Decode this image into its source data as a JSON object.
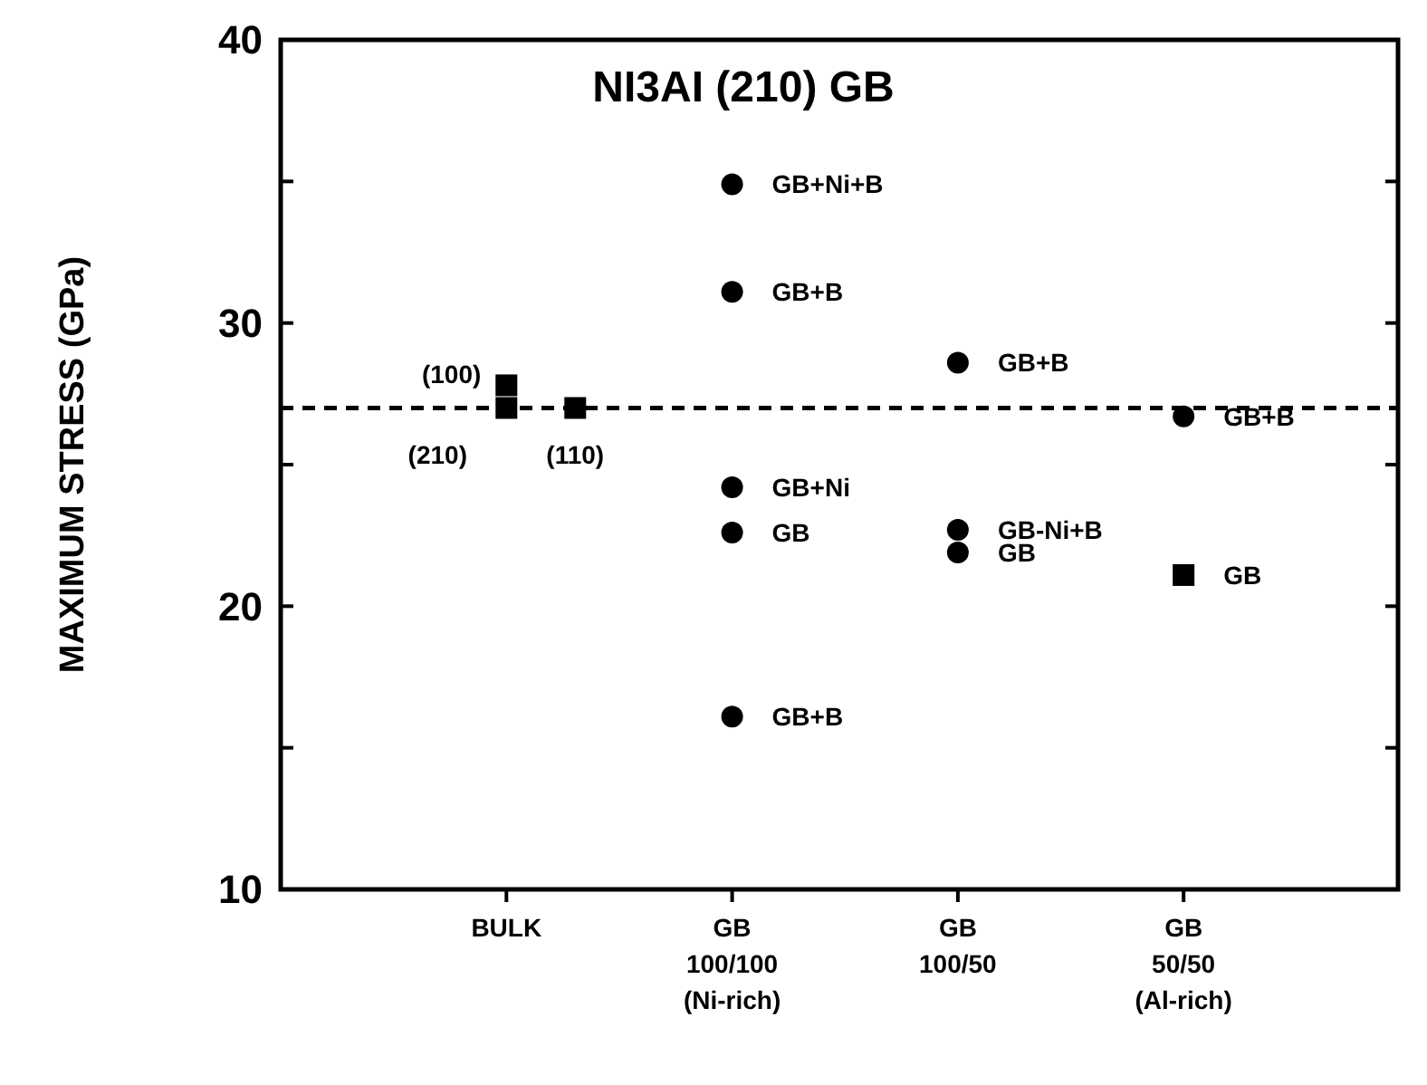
{
  "chart_data": {
    "type": "scatter",
    "title": "NI3AI (210) GB",
    "ylabel": "MAXIMUM STRESS (GPa)",
    "categories": [
      "BULK",
      "GB\n100/100\n(Ni-rich)",
      "GB\n100/50",
      "GB\n50/50\n(Al-rich)"
    ],
    "ylim": [
      10,
      40
    ],
    "yticks": [
      10,
      {
        "value": 15,
        "label": null
      },
      20,
      {
        "value": 25,
        "label": null
      },
      30,
      {
        "value": 35,
        "label": null
      },
      40
    ],
    "series": [
      {
        "color": "#000000",
        "marker": "square",
        "x": [
          "BULK",
          "BULK",
          "BULK",
          "GB\n50/50\n(Al-rich)"
        ],
        "values": [
          27.8,
          27.0,
          27.0,
          21.1
        ]
      },
      {
        "color": "#000000",
        "marker": "circle",
        "x": [
          "GB\n100/100\n(Ni-rich)",
          "GB\n100/100\n(Ni-rich)",
          "GB\n100/100\n(Ni-rich)",
          "GB\n100/100\n(Ni-rich)",
          "GB\n100/100\n(Ni-rich)",
          "GB\n100/50",
          "GB\n100/50",
          "GB\n100/50",
          "GB\n50/50\n(Al-rich)"
        ],
        "values": [
          34.9,
          31.1,
          24.2,
          22.6,
          16.1,
          28.6,
          22.7,
          21.9,
          26.7
        ]
      }
    ],
    "ref_lines": [
      {
        "axis": "y",
        "value": 27,
        "line_style": "dashed",
        "color": "#000000"
      }
    ],
    "annotations": [
      {
        "text": "(100)",
        "x": "BULK",
        "y": 27.8
      },
      {
        "text": "(210)",
        "x": "BULK",
        "y": 27.0
      },
      {
        "text": "(110)",
        "x": "BULK",
        "y": 27.0
      },
      {
        "text": "GB+Ni+B",
        "x": "GB\n100/100\n(Ni-rich)",
        "y": 34.9
      },
      {
        "text": "GB+B",
        "x": "GB\n100/100\n(Ni-rich)",
        "y": 31.1
      },
      {
        "text": "GB+Ni",
        "x": "GB\n100/100\n(Ni-rich)",
        "y": 24.2
      },
      {
        "text": "GB",
        "x": "GB\n100/100\n(Ni-rich)",
        "y": 22.6
      },
      {
        "text": "GB+B",
        "x": "GB\n100/100\n(Ni-rich)",
        "y": 16.1
      },
      {
        "text": "GB+B",
        "x": "GB\n100/50",
        "y": 28.6
      },
      {
        "text": "GB-Ni+B",
        "x": "GB\n100/50",
        "y": 22.7
      },
      {
        "text": "GB",
        "x": "GB\n100/50",
        "y": 21.9
      },
      {
        "text": "GB+B",
        "x": "GB\n50/50\n(Al-rich)",
        "y": 26.7
      },
      {
        "text": "GB",
        "x": "GB\n50/50\n(Al-rich)",
        "y": 21.1
      }
    ],
    "grid": false
  }
}
